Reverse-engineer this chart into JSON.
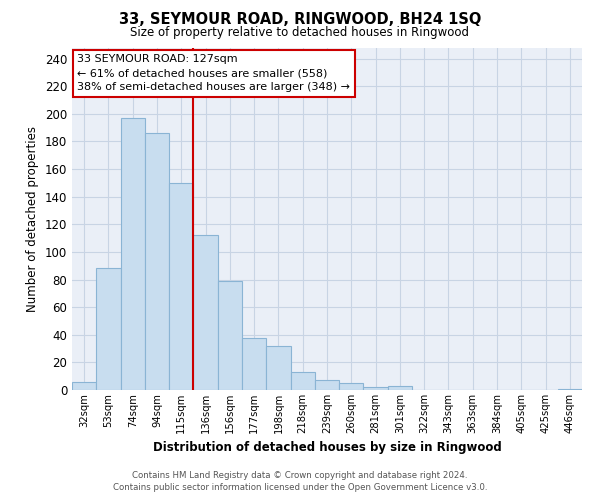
{
  "title": "33, SEYMOUR ROAD, RINGWOOD, BH24 1SQ",
  "subtitle": "Size of property relative to detached houses in Ringwood",
  "xlabel": "Distribution of detached houses by size in Ringwood",
  "ylabel": "Number of detached properties",
  "bar_labels": [
    "32sqm",
    "53sqm",
    "74sqm",
    "94sqm",
    "115sqm",
    "136sqm",
    "156sqm",
    "177sqm",
    "198sqm",
    "218sqm",
    "239sqm",
    "260sqm",
    "281sqm",
    "301sqm",
    "322sqm",
    "343sqm",
    "363sqm",
    "384sqm",
    "405sqm",
    "425sqm",
    "446sqm"
  ],
  "bar_values": [
    6,
    88,
    197,
    186,
    150,
    112,
    79,
    38,
    32,
    13,
    7,
    5,
    2,
    3,
    0,
    0,
    0,
    0,
    0,
    0,
    1
  ],
  "bar_color": "#c8ddef",
  "bar_edge_color": "#8ab4d4",
  "vline_x": 4.5,
  "vline_color": "#cc0000",
  "annotation_title": "33 SEYMOUR ROAD: 127sqm",
  "annotation_line1": "← 61% of detached houses are smaller (558)",
  "annotation_line2": "38% of semi-detached houses are larger (348) →",
  "annotation_box_color": "#ffffff",
  "annotation_box_edge": "#cc0000",
  "ylim": [
    0,
    248
  ],
  "yticks": [
    0,
    20,
    40,
    60,
    80,
    100,
    120,
    140,
    160,
    180,
    200,
    220,
    240
  ],
  "grid_color": "#c8d4e4",
  "bg_color": "#eaeff7",
  "footer_line1": "Contains HM Land Registry data © Crown copyright and database right 2024.",
  "footer_line2": "Contains public sector information licensed under the Open Government Licence v3.0."
}
